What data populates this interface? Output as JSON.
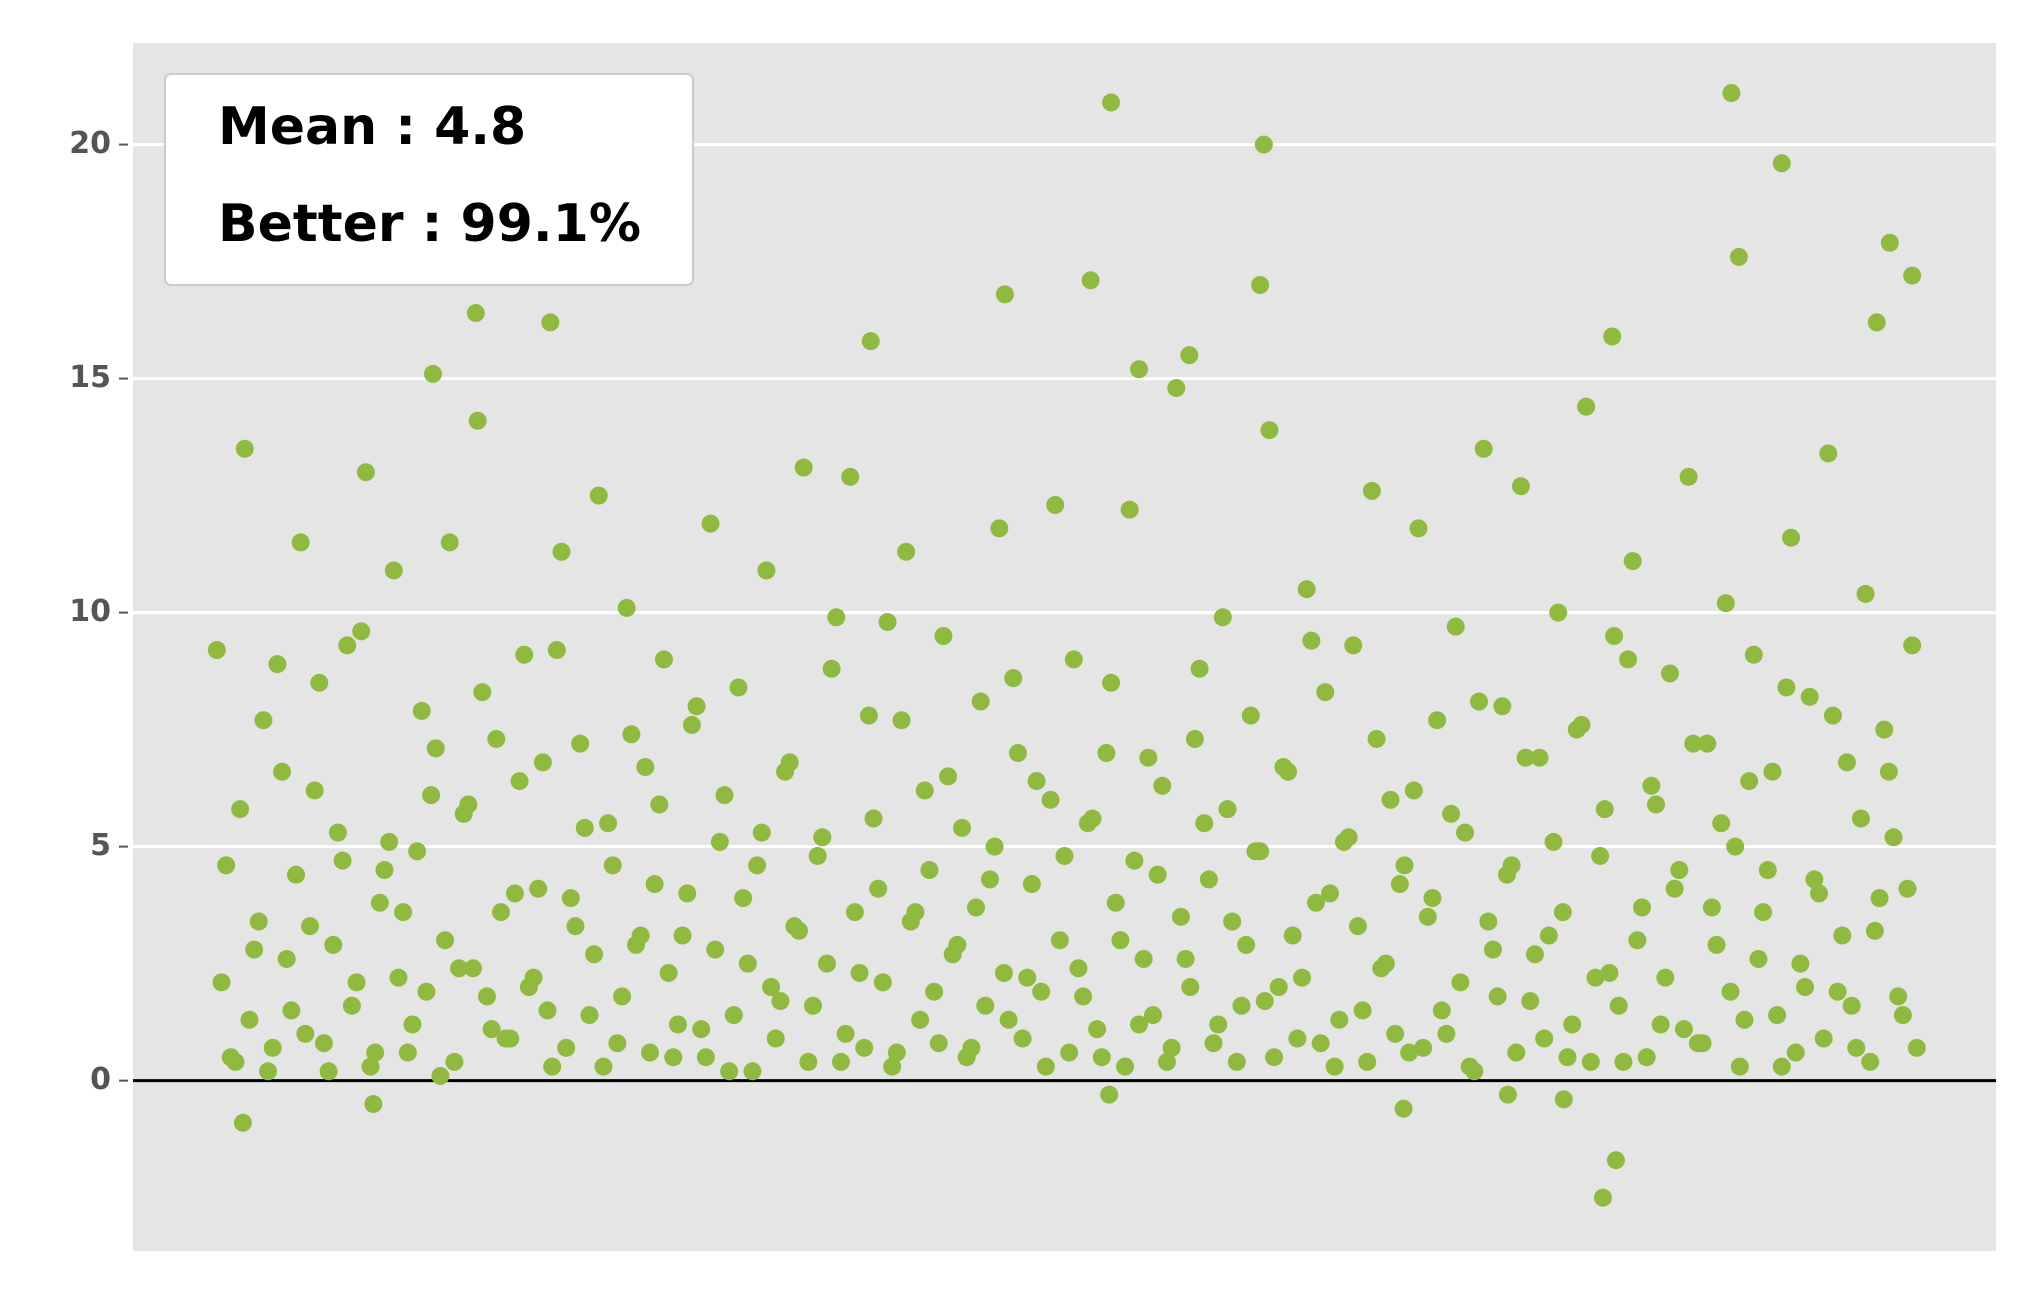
{
  "chart_data": {
    "type": "scatter",
    "annotations": [
      "Mean : 4.8",
      "Better : 99.1%"
    ],
    "color": "#8fba3f",
    "grid": true,
    "hline": 0,
    "xlim": [
      0,
      1000
    ],
    "ylim": [
      -3.64,
      22.17
    ],
    "yticks": [
      0,
      5,
      10,
      15,
      20
    ],
    "x": [
      45,
      50,
      55,
      60,
      65,
      70,
      75,
      80,
      85,
      90,
      95,
      100,
      105,
      110,
      115,
      120,
      125,
      130,
      135,
      140,
      145,
      150,
      155,
      160,
      165,
      170,
      175,
      180,
      185,
      190,
      195,
      200,
      205,
      210,
      215,
      220,
      225,
      230,
      235,
      240,
      245,
      250,
      255,
      260,
      265,
      270,
      275,
      280,
      285,
      290,
      295,
      300,
      305,
      310,
      315,
      320,
      325,
      330,
      335,
      340,
      345,
      350,
      355,
      360,
      365,
      370,
      375,
      380,
      385,
      390,
      395,
      400,
      405,
      410,
      415,
      420,
      425,
      430,
      435,
      440,
      445,
      450,
      455,
      460,
      465,
      470,
      475,
      480,
      485,
      490,
      495,
      500,
      505,
      510,
      515,
      520,
      525,
      530,
      535,
      540,
      545,
      550,
      555,
      560,
      565,
      570,
      575,
      580,
      585,
      590,
      595,
      600,
      605,
      610,
      615,
      620,
      625,
      630,
      635,
      640,
      645,
      650,
      655,
      660,
      665,
      670,
      675,
      680,
      685,
      690,
      695,
      700,
      705,
      710,
      715,
      720,
      725,
      730,
      735,
      740,
      745,
      750,
      755,
      760,
      765,
      770,
      775,
      780,
      785,
      790,
      795,
      800,
      805,
      810,
      815,
      820,
      825,
      830,
      835,
      840,
      845,
      850,
      855,
      860,
      865,
      870,
      875,
      880,
      885,
      890,
      895,
      900,
      905,
      910,
      915,
      920,
      925,
      930,
      935,
      940,
      945,
      950,
      955,
      47.5,
      52.5,
      57.5,
      62.5,
      67.5,
      72.5,
      77.5,
      82.5,
      87.5,
      92.5,
      97.5,
      102.5,
      107.5,
      112.5,
      117.5,
      122.5,
      127.5,
      132.5,
      137.5,
      142.5,
      147.5,
      152.5,
      157.5,
      162.5,
      167.5,
      172.5,
      177.5,
      182.5,
      187.5,
      192.5,
      197.5,
      202.5,
      207.5,
      212.5,
      217.5,
      222.5,
      227.5,
      232.5,
      237.5,
      242.5,
      247.5,
      252.5,
      257.5,
      262.5,
      267.5,
      272.5,
      277.5,
      282.5,
      287.5,
      292.5,
      297.5,
      302.5,
      307.5,
      312.5,
      317.5,
      322.5,
      327.5,
      332.5,
      337.5,
      342.5,
      347.5,
      352.5,
      357.5,
      362.5,
      367.5,
      372.5,
      377.5,
      382.5,
      387.5,
      392.5,
      397.5,
      402.5,
      407.5,
      412.5,
      417.5,
      422.5,
      427.5,
      432.5,
      437.5,
      442.5,
      447.5,
      452.5,
      457.5,
      462.5,
      467.5,
      472.5,
      477.5,
      482.5,
      487.5,
      492.5,
      497.5,
      502.5,
      507.5,
      512.5,
      517.5,
      522.5,
      527.5,
      532.5,
      537.5,
      542.5,
      547.5,
      552.5,
      557.5,
      562.5,
      567.5,
      572.5,
      577.5,
      582.5,
      587.5,
      592.5,
      597.5,
      602.5,
      607.5,
      612.5,
      617.5,
      622.5,
      627.5,
      632.5,
      637.5,
      642.5,
      647.5,
      652.5,
      657.5,
      662.5,
      667.5,
      672.5,
      677.5,
      682.5,
      687.5,
      692.5,
      697.5,
      702.5,
      707.5,
      712.5,
      717.5,
      722.5,
      727.5,
      732.5,
      737.5,
      742.5,
      747.5,
      752.5,
      757.5,
      762.5,
      767.5,
      772.5,
      777.5,
      782.5,
      787.5,
      792.5,
      797.5,
      802.5,
      807.5,
      812.5,
      817.5,
      822.5,
      827.5,
      832.5,
      837.5,
      842.5,
      847.5,
      852.5,
      857.5,
      862.5,
      867.5,
      872.5,
      877.5,
      882.5,
      887.5,
      892.5,
      897.5,
      902.5,
      907.5,
      912.5,
      917.5,
      922.5,
      927.5,
      932.5,
      937.5,
      942.5,
      947.5,
      952.5,
      957.5,
      525,
      858,
      607,
      885,
      862,
      943,
      955,
      605,
      514,
      468,
      184,
      224,
      161,
      936,
      794,
      396,
      567,
      540,
      789,
      796,
      59,
      682,
      129,
      524,
      768,
      738
    ],
    "values": [
      9.2,
      4.6,
      0.4,
      13.5,
      2.8,
      7.7,
      0.7,
      6.6,
      1.5,
      11.5,
      3.3,
      8.5,
      0.2,
      5.3,
      9.3,
      2.1,
      13.0,
      0.6,
      4.5,
      10.9,
      3.6,
      1.2,
      7.9,
      6.1,
      0.1,
      11.5,
      2.4,
      5.9,
      14.1,
      1.8,
      7.3,
      0.9,
      4.0,
      9.1,
      2.2,
      6.8,
      0.3,
      11.3,
      3.9,
      7.2,
      1.4,
      12.5,
      5.5,
      0.8,
      10.1,
      2.9,
      6.7,
      4.2,
      9.0,
      0.5,
      3.1,
      7.6,
      1.1,
      11.9,
      5.1,
      0.2,
      8.4,
      2.5,
      4.6,
      10.9,
      0.9,
      6.6,
      3.3,
      13.1,
      1.6,
      5.2,
      8.8,
      0.4,
      12.9,
      2.3,
      7.8,
      4.1,
      9.8,
      0.6,
      11.3,
      3.6,
      6.2,
      1.9,
      9.5,
      2.7,
      5.4,
      0.7,
      8.1,
      4.3,
      11.8,
      1.3,
      7.0,
      2.2,
      6.4,
      0.3,
      12.3,
      4.8,
      9.0,
      1.8,
      5.6,
      0.5,
      8.5,
      3.0,
      12.2,
      1.2,
      6.9,
      4.4,
      0.4,
      14.8,
      2.6,
      7.3,
      5.5,
      0.8,
      9.9,
      3.4,
      1.6,
      7.8,
      4.9,
      13.9,
      2.0,
      6.6,
      0.9,
      10.5,
      3.8,
      8.3,
      0.3,
      5.1,
      9.3,
      1.5,
      12.6,
      2.4,
      6.0,
      4.2,
      0.6,
      11.8,
      3.5,
      7.7,
      1.0,
      9.7,
      5.3,
      0.2,
      13.5,
      2.8,
      8.0,
      4.6,
      12.7,
      1.7,
      6.9,
      3.1,
      10.0,
      0.5,
      7.5,
      14.4,
      2.2,
      5.8,
      9.5,
      0.4,
      11.1,
      3.7,
      6.3,
      1.2,
      8.7,
      4.5,
      12.9,
      0.8,
      7.2,
      2.9,
      10.2,
      5.0,
      1.3,
      9.1,
      3.6,
      6.6,
      0.3,
      11.6,
      2.5,
      8.2,
      4.0,
      13.4,
      1.9,
      6.8,
      0.7,
      10.4,
      3.2,
      7.5,
      5.2,
      1.4,
      9.3,
      2.1,
      0.5,
      5.8,
      1.3,
      3.4,
      0.2,
      8.9,
      2.6,
      4.4,
      1.0,
      6.2,
      0.8,
      2.9,
      4.7,
      1.6,
      9.6,
      0.3,
      3.8,
      5.1,
      2.2,
      0.6,
      4.9,
      1.9,
      7.1,
      3.0,
      0.4,
      5.7,
      2.4,
      8.3,
      1.1,
      3.6,
      0.9,
      6.4,
      2.0,
      4.1,
      1.5,
      9.2,
      0.7,
      3.3,
      5.4,
      2.7,
      0.3,
      4.6,
      1.8,
      7.4,
      3.1,
      0.6,
      5.9,
      2.3,
      1.2,
      4.0,
      8.0,
      0.5,
      2.8,
      6.1,
      1.4,
      3.9,
      0.2,
      5.3,
      2.0,
      1.7,
      6.8,
      3.2,
      0.4,
      4.8,
      2.5,
      9.9,
      1.0,
      3.6,
      0.7,
      5.6,
      2.1,
      0.3,
      7.7,
      3.4,
      1.3,
      4.5,
      0.8,
      6.5,
      2.9,
      0.5,
      3.7,
      1.6,
      5.0,
      2.3,
      8.6,
      0.9,
      4.2,
      1.9,
      6.0,
      3.0,
      0.6,
      2.4,
      5.5,
      1.1,
      7.0,
      3.8,
      0.3,
      4.7,
      2.6,
      1.4,
      6.3,
      0.7,
      3.5,
      2.0,
      8.8,
      4.3,
      1.2,
      5.8,
      0.4,
      2.9,
      4.9,
      1.7,
      0.5,
      6.7,
      3.1,
      2.2,
      9.4,
      0.8,
      4.0,
      1.3,
      5.2,
      3.3,
      0.4,
      7.3,
      2.5,
      1.0,
      4.6,
      6.2,
      0.7,
      3.9,
      1.5,
      5.7,
      2.1,
      0.3,
      8.1,
      3.4,
      1.8,
      4.4,
      0.6,
      6.9,
      2.7,
      0.9,
      5.1,
      3.6,
      1.2,
      7.6,
      0.4,
      4.8,
      2.3,
      1.6,
      9.0,
      3.0,
      0.5,
      5.9,
      2.2,
      4.1,
      1.1,
      7.2,
      0.8,
      3.7,
      5.5,
      1.9,
      0.3,
      6.4,
      2.6,
      4.5,
      1.4,
      8.4,
      0.6,
      2.0,
      4.3,
      0.9,
      7.8,
      3.1,
      1.6,
      5.6,
      0.4,
      3.9,
      6.6,
      1.8,
      4.1,
      0.7,
      20.9,
      21.1,
      20.0,
      19.6,
      17.6,
      17.9,
      17.2,
      17.0,
      17.1,
      16.8,
      16.4,
      16.2,
      15.1,
      16.2,
      15.9,
      15.8,
      15.5,
      15.2,
      -2.5,
      -1.7,
      -0.9,
      -0.6,
      -0.5,
      -0.3,
      -0.4,
      -0.3
    ]
  }
}
